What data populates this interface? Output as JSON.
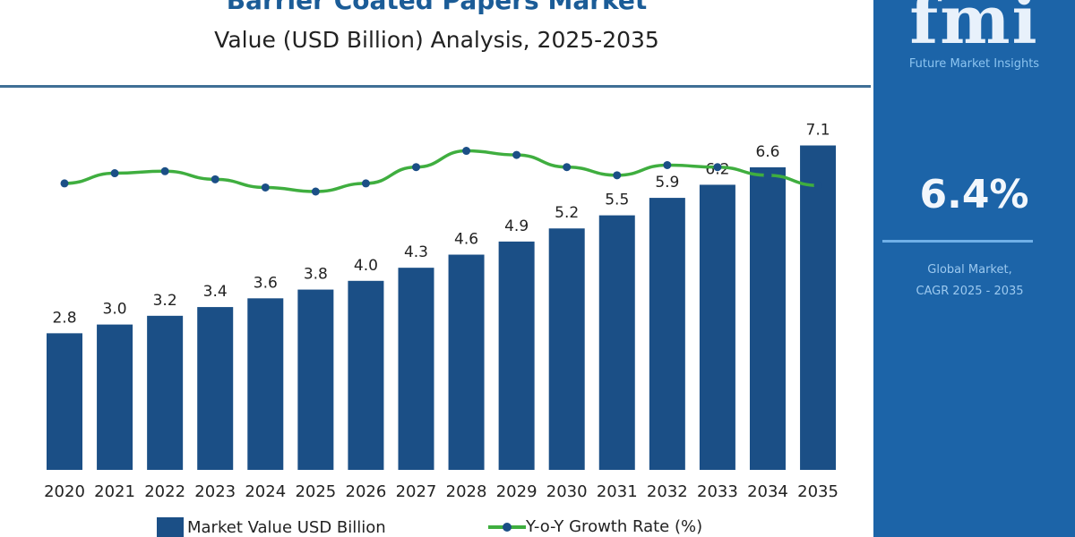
{
  "chart_data": {
    "type": "bar",
    "title": "Barrier Coated Papers Market",
    "subtitle": "Value (USD Billion) Analysis, 2025-2035",
    "categories": [
      "2020",
      "2021",
      "2022",
      "2023",
      "2024",
      "2025",
      "2026",
      "2027",
      "2028",
      "2029",
      "2030",
      "2031",
      "2032",
      "2033",
      "2034",
      "2035"
    ],
    "series": [
      {
        "name": "Market Value USD Billion",
        "type": "bar",
        "color": "#1b4f86",
        "values": [
          2.8,
          3.0,
          3.2,
          3.4,
          3.6,
          3.8,
          4.0,
          4.3,
          4.6,
          4.9,
          5.2,
          5.5,
          5.9,
          6.2,
          6.6,
          7.1
        ]
      },
      {
        "name": "Y-o-Y Growth Rate (%)",
        "type": "line",
        "color": "#3fae3f",
        "marker_color": "#1b4f86",
        "values": [
          5.9,
          6.4,
          6.5,
          6.1,
          5.7,
          5.5,
          5.9,
          6.7,
          7.5,
          7.3,
          6.7,
          6.3,
          6.8,
          6.7,
          6.3,
          5.8
        ]
      }
    ],
    "grid": false,
    "legend": "bottom"
  },
  "panel": {
    "logo": "fmi",
    "brand": "Future Market Insights",
    "cagr_value": "6.4%",
    "cagr_label_1": "Global Market,",
    "cagr_label_2": "CAGR 2025 - 2035",
    "color": "#1c64a8"
  }
}
